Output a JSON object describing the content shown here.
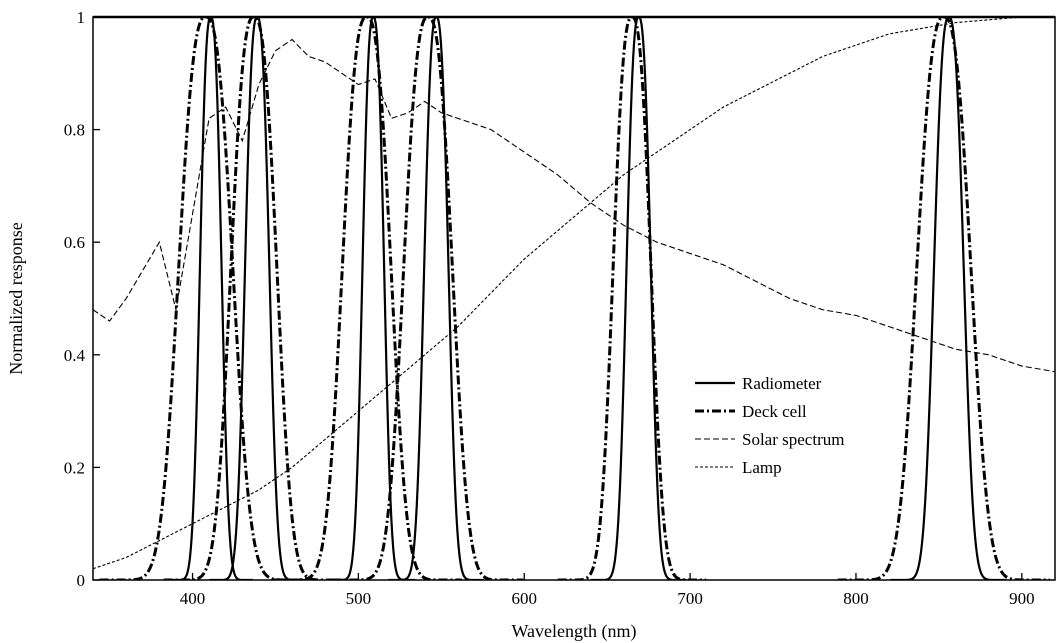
{
  "chart_data": {
    "type": "line",
    "xlabel": "Wavelength (nm)",
    "ylabel": "Normalized response",
    "xlim": [
      340,
      920
    ],
    "ylim": [
      0,
      1
    ],
    "xticks": [
      400,
      500,
      600,
      700,
      800,
      900
    ],
    "yticks": [
      0,
      0.2,
      0.4,
      0.6,
      0.8,
      1
    ],
    "ytick_labels": [
      "0",
      "0.2",
      "0.4",
      "0.6",
      "0.8",
      "1"
    ],
    "grid": false,
    "legend_position": "right-center",
    "series": [
      {
        "name": "Radiometer",
        "style": "solid",
        "bands": [
          {
            "center": 411,
            "width": 8
          },
          {
            "center": 439,
            "width": 9
          },
          {
            "center": 509,
            "width": 8
          },
          {
            "center": 547,
            "width": 9
          },
          {
            "center": 669,
            "width": 9
          },
          {
            "center": 856,
            "width": 11
          }
        ]
      },
      {
        "name": "Deck cell",
        "style": "dash-dot",
        "bands": [
          {
            "center": 408,
            "width": 20
          },
          {
            "center": 437,
            "width": 17
          },
          {
            "center": 505,
            "width": 18
          },
          {
            "center": 542,
            "width": 18
          },
          {
            "center": 665,
            "width": 14
          },
          {
            "center": 853,
            "width": 20
          }
        ]
      },
      {
        "name": "Solar spectrum",
        "style": "dashed",
        "x": [
          340,
          350,
          360,
          370,
          380,
          390,
          400,
          410,
          420,
          430,
          440,
          450,
          460,
          470,
          480,
          490,
          500,
          510,
          520,
          530,
          540,
          550,
          560,
          570,
          580,
          590,
          600,
          620,
          640,
          660,
          680,
          700,
          720,
          740,
          760,
          780,
          800,
          820,
          840,
          860,
          880,
          900,
          920
        ],
        "y": [
          0.48,
          0.46,
          0.5,
          0.55,
          0.6,
          0.48,
          0.65,
          0.82,
          0.84,
          0.78,
          0.88,
          0.94,
          0.96,
          0.93,
          0.92,
          0.9,
          0.88,
          0.89,
          0.82,
          0.83,
          0.85,
          0.83,
          0.82,
          0.81,
          0.8,
          0.78,
          0.76,
          0.72,
          0.67,
          0.63,
          0.6,
          0.58,
          0.56,
          0.53,
          0.5,
          0.48,
          0.47,
          0.45,
          0.43,
          0.41,
          0.4,
          0.38,
          0.37
        ]
      },
      {
        "name": "Lamp",
        "style": "dotted",
        "x": [
          340,
          360,
          380,
          400,
          420,
          440,
          460,
          480,
          500,
          520,
          540,
          560,
          580,
          600,
          620,
          640,
          660,
          680,
          700,
          720,
          740,
          760,
          780,
          800,
          820,
          840,
          860,
          880,
          900,
          920
        ],
        "y": [
          0.02,
          0.04,
          0.07,
          0.1,
          0.13,
          0.16,
          0.2,
          0.25,
          0.3,
          0.35,
          0.4,
          0.45,
          0.51,
          0.57,
          0.62,
          0.67,
          0.72,
          0.76,
          0.8,
          0.84,
          0.87,
          0.9,
          0.93,
          0.95,
          0.97,
          0.98,
          0.99,
          0.995,
          1.0,
          1.0
        ]
      }
    ]
  }
}
